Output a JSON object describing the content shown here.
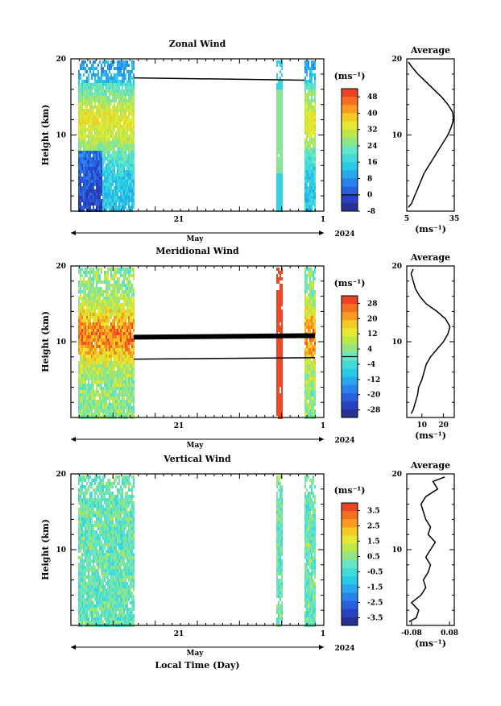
{
  "chart_data": [
    {
      "type": "heatmap",
      "title": "Zonal Wind",
      "ylabel": "Height (km)",
      "ylim": [
        0,
        20
      ],
      "yticks": [
        "20",
        "10"
      ],
      "x_tick_labels": [
        "21",
        "1"
      ],
      "month_label": "May",
      "year_label": "2024",
      "colorbar": {
        "unit": "(ms⁻¹)",
        "range": [
          -8,
          52
        ],
        "labels": [
          "48",
          "40",
          "32",
          "24",
          "16",
          "8",
          "0",
          "-8"
        ]
      },
      "profile": {
        "title": "Average",
        "yticks": [
          "20",
          "10"
        ],
        "xticks": [
          "5",
          "35"
        ],
        "xlabel": "(ms⁻¹)",
        "xlim": [
          5,
          35
        ],
        "heights": [
          0.5,
          1,
          2,
          3,
          4,
          5,
          6,
          7,
          8,
          9,
          10,
          11,
          12,
          13,
          14,
          15,
          16,
          17,
          18,
          19,
          19.6
        ],
        "values": [
          6,
          8,
          10,
          12,
          14,
          16,
          19,
          22,
          25,
          28,
          31,
          33,
          34.5,
          34,
          31,
          27,
          22,
          17,
          12,
          8,
          6
        ]
      }
    },
    {
      "type": "heatmap",
      "title": "Meridional Wind",
      "ylabel": "Height (km)",
      "ylim": [
        0,
        20
      ],
      "yticks": [
        "20",
        "10"
      ],
      "x_tick_labels": [
        "21",
        "1"
      ],
      "month_label": "May",
      "year_label": "2024",
      "colorbar": {
        "unit": "(ms⁻¹)",
        "range": [
          -32,
          32
        ],
        "labels": [
          "28",
          "20",
          "12",
          "4",
          "-4",
          "-12",
          "-20",
          "-28"
        ]
      },
      "profile": {
        "title": "Average",
        "yticks": [
          "20",
          "10"
        ],
        "xticks": [
          "10",
          "20"
        ],
        "xlabel": "(ms⁻¹)",
        "xlim": [
          3,
          25
        ],
        "heights": [
          0.5,
          1,
          2,
          3,
          4,
          5,
          6,
          7,
          8,
          9,
          10,
          11,
          12,
          13,
          14,
          15,
          16,
          17,
          18,
          19,
          19.6
        ],
        "values": [
          5,
          6,
          7,
          8,
          8.5,
          10,
          11,
          12,
          14,
          17,
          20,
          22,
          23,
          21,
          17,
          12,
          9,
          7,
          6,
          5,
          6
        ]
      }
    },
    {
      "type": "heatmap",
      "title": "Vertical Wind",
      "ylabel": "Height (km)",
      "ylim": [
        0,
        20
      ],
      "yticks": [
        "20",
        "10"
      ],
      "x_tick_labels": [
        "21",
        "1"
      ],
      "month_label": "May",
      "year_label": "2024",
      "xlabel": "Local Time (Day)",
      "colorbar": {
        "unit": "(ms⁻¹)",
        "range": [
          -4,
          4
        ],
        "labels": [
          "3.5",
          "2.5",
          "1.5",
          "0.5",
          "-0.5",
          "-1.5",
          "-2.5",
          "-3.5"
        ]
      },
      "profile": {
        "title": "Average",
        "yticks": [
          "20",
          "10"
        ],
        "xticks": [
          "-0.08",
          "0.08"
        ],
        "xlabel": "(ms⁻¹)",
        "xlim": [
          -0.1,
          0.1
        ],
        "heights": [
          0.5,
          1,
          2,
          3,
          4,
          5,
          6,
          7,
          8,
          9,
          10,
          11,
          12,
          13,
          14,
          15,
          16,
          17,
          18,
          19,
          19.6
        ],
        "values": [
          -0.09,
          -0.06,
          -0.05,
          -0.08,
          -0.04,
          -0.02,
          -0.03,
          -0.01,
          0.0,
          -0.02,
          0.0,
          0.02,
          -0.01,
          0.0,
          -0.02,
          -0.03,
          -0.04,
          -0.02,
          0.03,
          0.01,
          0.06
        ]
      }
    }
  ]
}
